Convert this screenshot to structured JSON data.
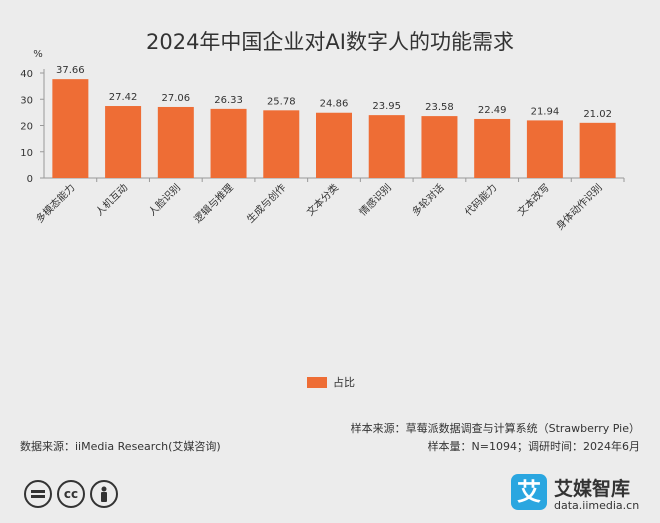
{
  "chart_data": {
    "type": "bar",
    "title": "2024年中国企业对AI数字人的功能需求",
    "ylabel": "%",
    "ylim": [
      0,
      40
    ],
    "yticks": [
      0,
      10,
      20,
      30,
      40
    ],
    "categories": [
      "多模态能力",
      "人机互动",
      "人脸识别",
      "逻辑与推理",
      "生成与创作",
      "文本分类",
      "情感识别",
      "多轮对话",
      "代码能力",
      "文本改写",
      "身体动作识别"
    ],
    "series": [
      {
        "name": "占比",
        "values": [
          37.66,
          27.42,
          27.06,
          26.33,
          25.78,
          24.86,
          23.95,
          23.58,
          22.49,
          21.94,
          21.02
        ]
      }
    ],
    "bar_color": "#ee6d35",
    "legend_position": "bottom-center",
    "grid": false
  },
  "footer": {
    "source_line1": "样本来源：草莓派数据调查与计算系统（Strawberry Pie）",
    "source_line2": "样本量：N=1094；调研时间：2024年6月",
    "data_source": "数据来源：iiMedia Research(艾媒咨询)"
  },
  "license_icons": [
    "equals-icon",
    "cc-icon",
    "person-icon"
  ],
  "license_labels": {
    "cc": "cc"
  },
  "brand": {
    "logo_char": "艾",
    "name": "艾媒智库",
    "url": "data.iimedia.cn",
    "logo_color": "#2aa6e0"
  }
}
